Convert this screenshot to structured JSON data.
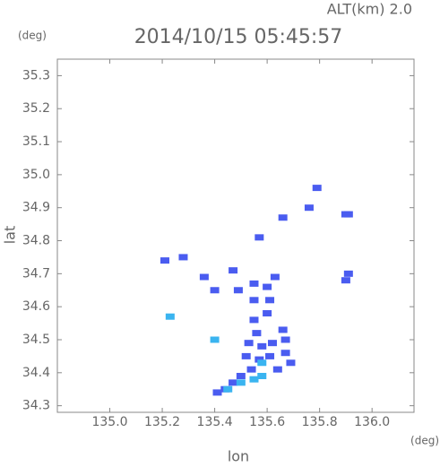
{
  "chart_data": {
    "type": "scatter",
    "title": "2014/10/15 05:45:57",
    "subtitle": "ALT(km) 2.0",
    "y_unit": "(deg)",
    "x_unit": "(deg)",
    "xlabel": "lon",
    "ylabel": "lat",
    "xlim": [
      134.8,
      136.16
    ],
    "ylim": [
      34.28,
      35.35
    ],
    "xticks": [
      {
        "value": 135,
        "label": "135.0"
      },
      135.2,
      135.4,
      135.6,
      135.8,
      {
        "value": 136,
        "label": "136.0"
      }
    ],
    "yticks": [
      34.3,
      34.4,
      34.5,
      34.6,
      34.7,
      34.8,
      34.9,
      {
        "value": 35,
        "label": "35.0"
      },
      35.1,
      35.2,
      35.3
    ],
    "grid": false,
    "series": [
      {
        "color": "#4a5cf0",
        "x": [
          135.79,
          135.9,
          135.91,
          135.76,
          135.66,
          135.57,
          135.21,
          135.28,
          135.36,
          135.4,
          135.47,
          135.49,
          135.55,
          135.6,
          135.63,
          135.91,
          135.9,
          135.55,
          135.61,
          135.55,
          135.6,
          135.56,
          135.53,
          135.58,
          135.62,
          135.67,
          135.52,
          135.57,
          135.61,
          135.67,
          135.69,
          135.64,
          135.54,
          135.5,
          135.47,
          135.44,
          135.41,
          135.66
        ],
        "y": [
          34.96,
          34.88,
          34.88,
          34.9,
          34.87,
          34.81,
          34.74,
          34.75,
          34.69,
          34.65,
          34.71,
          34.65,
          34.67,
          34.66,
          34.69,
          34.7,
          34.68,
          34.62,
          34.62,
          34.56,
          34.58,
          34.52,
          34.49,
          34.48,
          34.49,
          34.5,
          34.45,
          34.44,
          34.45,
          34.46,
          34.43,
          34.41,
          34.41,
          34.39,
          34.37,
          34.35,
          34.34,
          34.53
        ]
      },
      {
        "color": "#3ab4f0",
        "x": [
          135.45,
          135.5,
          135.55,
          135.58,
          135.58,
          135.23,
          135.4
        ],
        "y": [
          34.35,
          34.37,
          34.38,
          34.39,
          34.43,
          34.57,
          34.5
        ]
      }
    ]
  }
}
